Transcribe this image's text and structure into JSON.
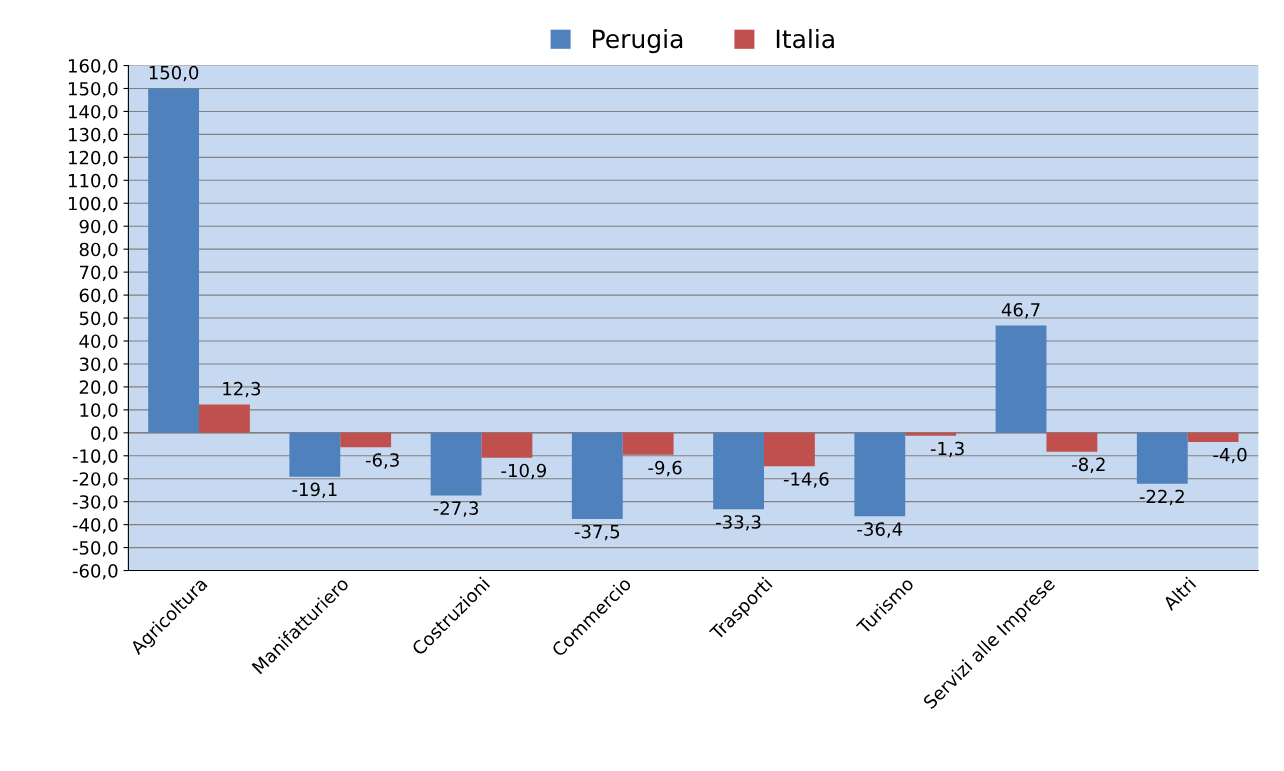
{
  "chart_data": {
    "type": "bar",
    "categories": [
      "Agricoltura",
      "Manifatturiero",
      "Costruzioni",
      "Commercio",
      "Trasporti",
      "Turismo",
      "Servizi alle Imprese",
      "Altri"
    ],
    "series": [
      {
        "name": "Perugia",
        "color": "#4f81bd",
        "values": [
          150.0,
          -19.1,
          -27.3,
          -37.5,
          -33.3,
          -36.4,
          46.7,
          -22.2
        ],
        "value_labels": [
          "150,0",
          "-19,1",
          "-27,3",
          "-37,5",
          "-33,3",
          "-36,4",
          "46,7",
          "-22,2"
        ]
      },
      {
        "name": "Italia",
        "color": "#c0504d",
        "values": [
          12.3,
          -6.3,
          -10.9,
          -9.6,
          -14.6,
          -1.3,
          -8.2,
          -4.0
        ],
        "value_labels": [
          "12,3",
          "-6,3",
          "-10,9",
          "-9,6",
          "-14,6",
          "-1,3",
          "-8,2",
          "-4,0"
        ]
      }
    ],
    "ylim": [
      -60,
      160
    ],
    "yticks": [
      {
        "value": -60,
        "label": "-60,0"
      },
      {
        "value": -50,
        "label": "-50,0"
      },
      {
        "value": -40,
        "label": "-40,0"
      },
      {
        "value": -30,
        "label": "-30,0"
      },
      {
        "value": -20,
        "label": "-20,0"
      },
      {
        "value": -10,
        "label": "-10,0"
      },
      {
        "value": 0,
        "label": "0,0"
      },
      {
        "value": 10,
        "label": "10,0"
      },
      {
        "value": 20,
        "label": "20,0"
      },
      {
        "value": 30,
        "label": "30,0"
      },
      {
        "value": 40,
        "label": "40,0"
      },
      {
        "value": 50,
        "label": "50,0"
      },
      {
        "value": 60,
        "label": "60,0"
      },
      {
        "value": 70,
        "label": "70,0"
      },
      {
        "value": 80,
        "label": "80,0"
      },
      {
        "value": 90,
        "label": "90,0"
      },
      {
        "value": 100,
        "label": "100,0"
      },
      {
        "value": 110,
        "label": "110,0"
      },
      {
        "value": 120,
        "label": "120,0"
      },
      {
        "value": 130,
        "label": "130,0"
      },
      {
        "value": 140,
        "label": "140,0"
      },
      {
        "value": 150,
        "label": "150,0"
      },
      {
        "value": 160,
        "label": "160,0"
      }
    ],
    "grid": "y",
    "legend": "top"
  }
}
